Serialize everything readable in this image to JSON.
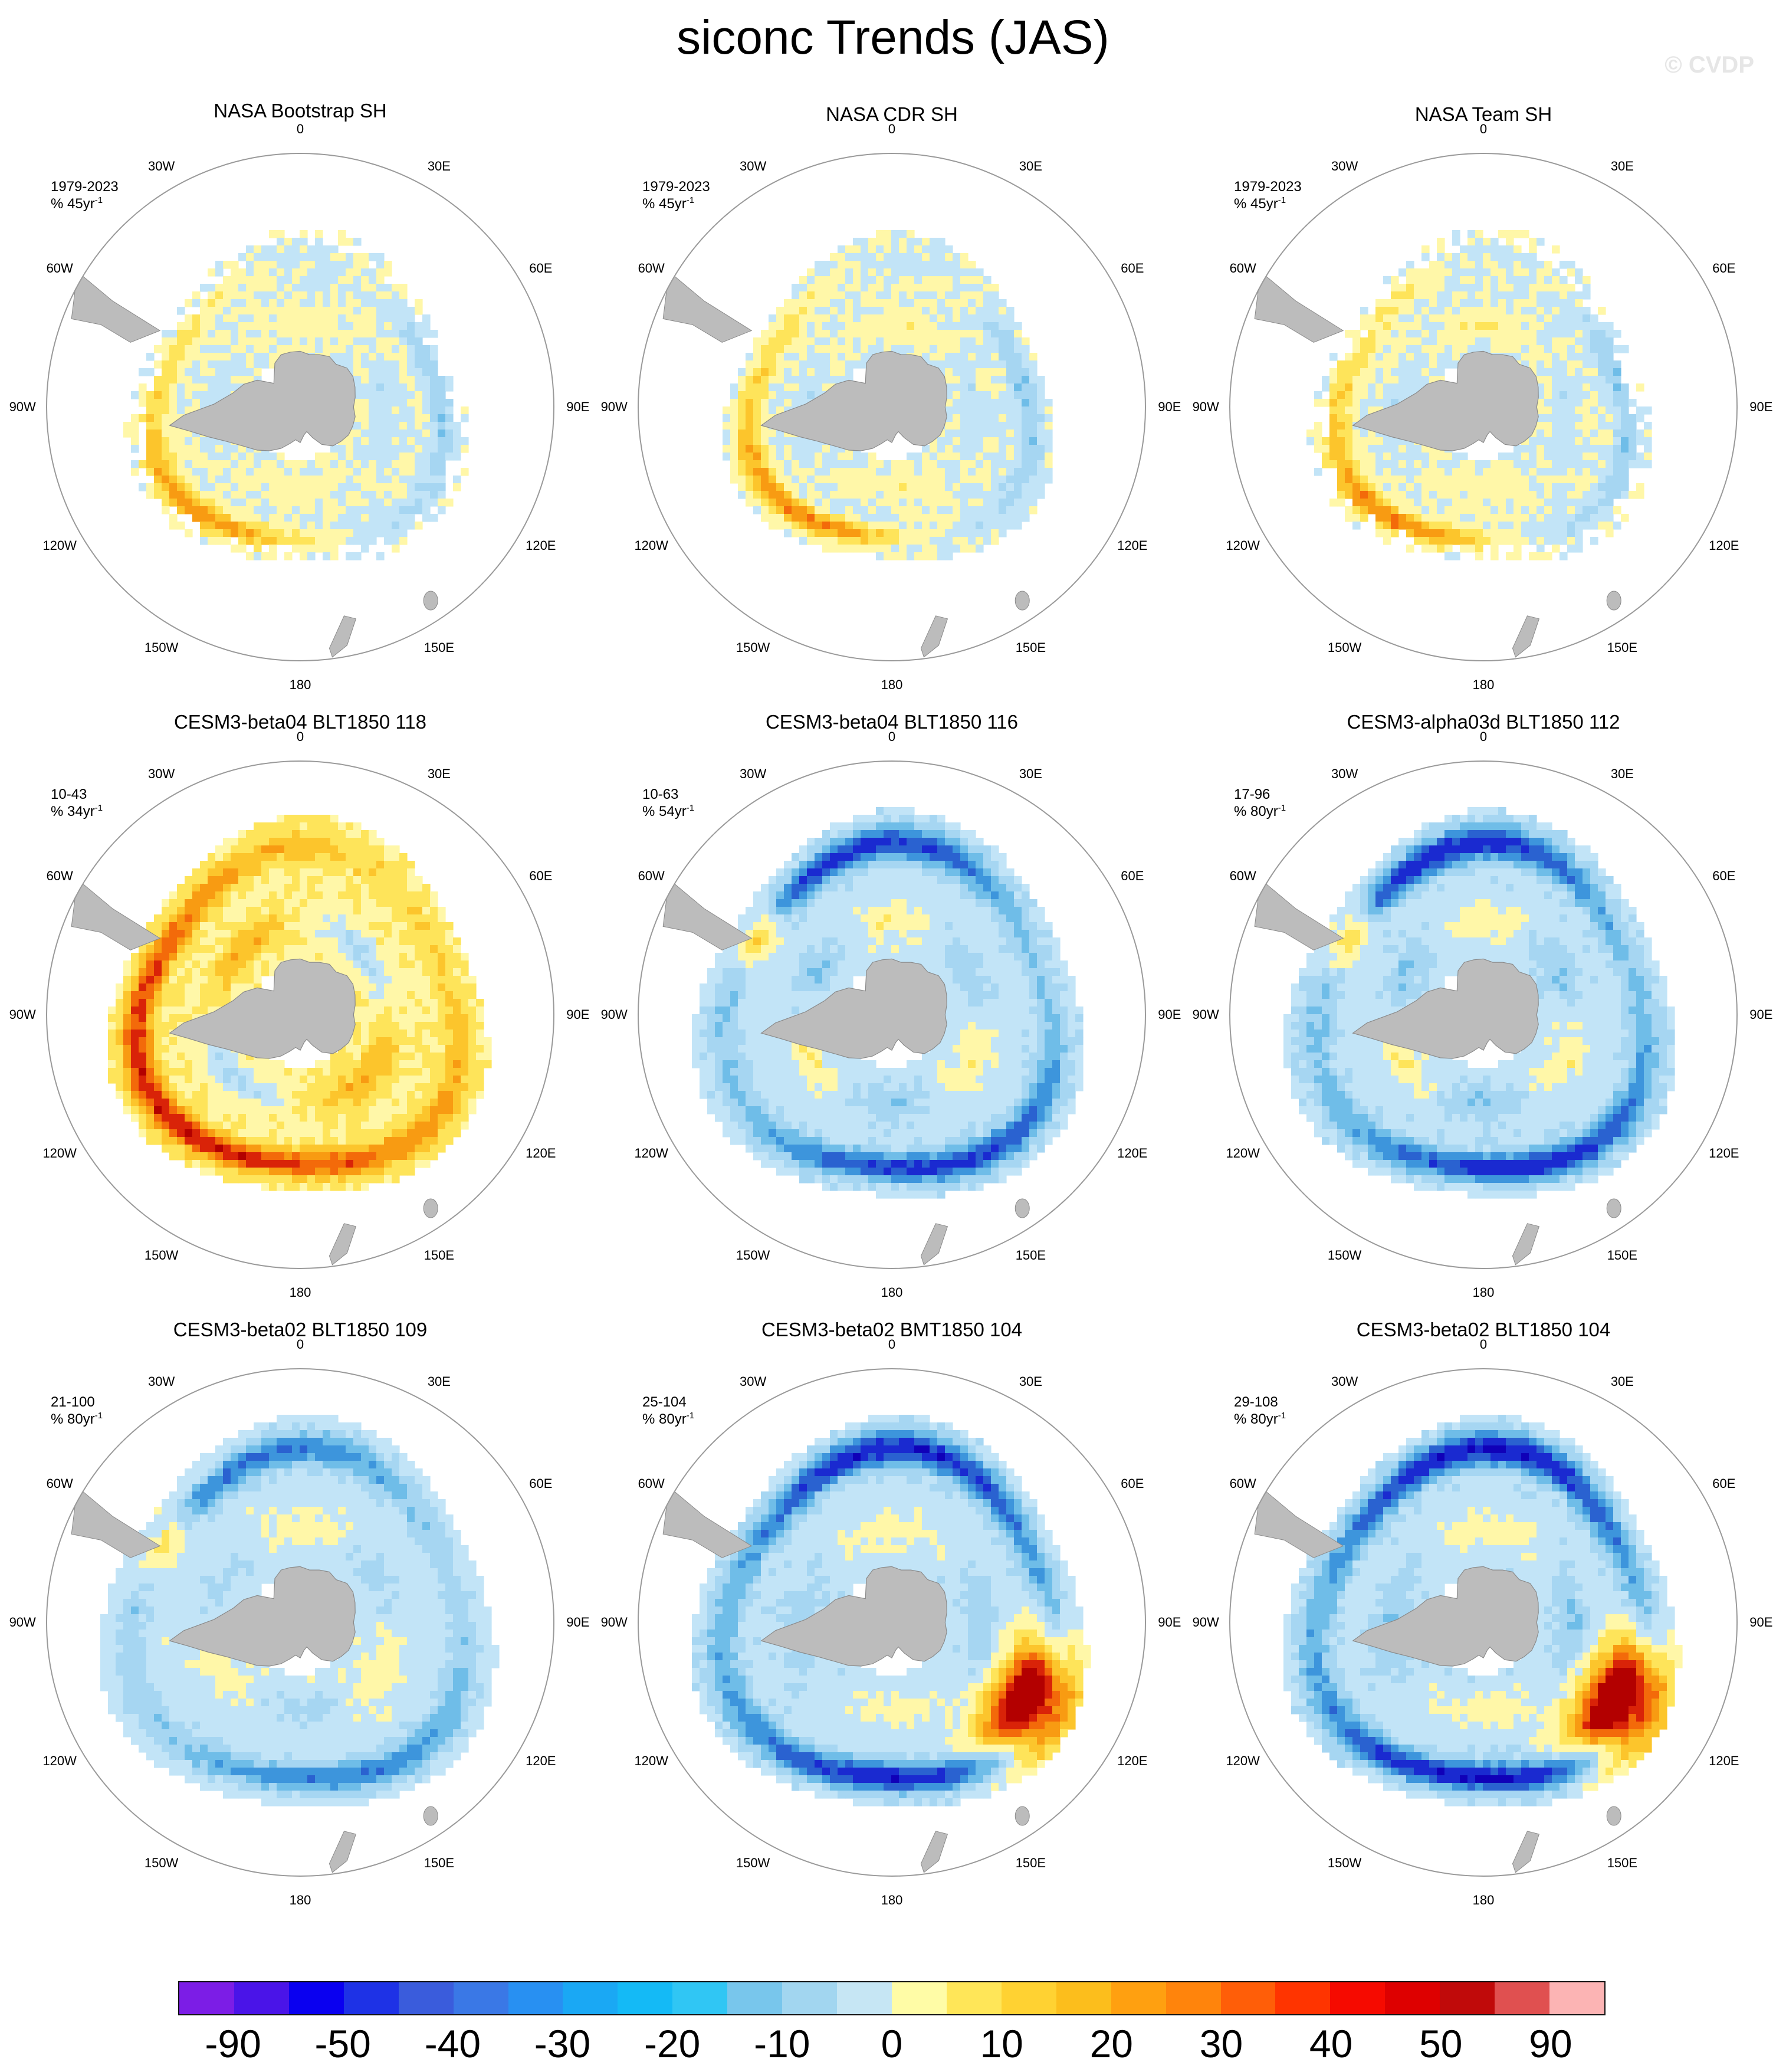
{
  "title": "siconc Trends (JAS)",
  "watermark": "© CVDP",
  "colors": {
    "land": "#bcbcbc",
    "circle": "#9a9a9a",
    "positive_ramp": [
      "#fff7a8",
      "#fee45a",
      "#fcc52c",
      "#f89b12",
      "#f36a0a",
      "#d92308",
      "#b30000"
    ],
    "negative_ramp": [
      "#c2e4f7",
      "#a6d6f2",
      "#6fbde8",
      "#3d95dc",
      "#2a62d0",
      "#1a2ad0",
      "#1000b8"
    ]
  },
  "longitude_labels": [
    "0",
    "30E",
    "60E",
    "90E",
    "120E",
    "150E",
    "180",
    "150W",
    "120W",
    "90W",
    "60W",
    "30W"
  ],
  "panels": [
    {
      "title": "NASA Bootstrap SH",
      "period": "1979-2023",
      "units": "% 45yr",
      "units_exp": "-1",
      "pattern": {
        "ring": "mixed_obs",
        "strength": 0.45,
        "outer_extent": 0.66,
        "speckle": true
      }
    },
    {
      "title": "NASA CDR SH",
      "period": "1979-2023",
      "units": "% 45yr",
      "units_exp": "-1",
      "pattern": {
        "ring": "mixed_obs",
        "strength": 0.5,
        "outer_extent": 0.64,
        "speckle": false
      }
    },
    {
      "title": "NASA Team SH",
      "period": "1979-2023",
      "units": "% 45yr",
      "units_exp": "-1",
      "pattern": {
        "ring": "mixed_obs",
        "strength": 0.5,
        "outer_extent": 0.66,
        "speckle": true
      }
    },
    {
      "title": "CESM3-beta04 BLT1850 118",
      "period": "10-43",
      "units": "% 34yr",
      "units_exp": "-1",
      "pattern": {
        "ring": "positive",
        "strength": 0.8,
        "outer_extent": 0.74,
        "speckle": false
      }
    },
    {
      "title": "CESM3-beta04 BLT1850 116",
      "period": "10-63",
      "units": "% 54yr",
      "units_exp": "-1",
      "pattern": {
        "ring": "negative",
        "strength": 0.75,
        "outer_extent": 0.76,
        "speckle": false
      }
    },
    {
      "title": "CESM3-alpha03d BLT1850 112",
      "period": "17-96",
      "units": "% 80yr",
      "units_exp": "-1",
      "pattern": {
        "ring": "negative",
        "strength": 0.8,
        "outer_extent": 0.76,
        "speckle": false
      }
    },
    {
      "title": "CESM3-beta02 BLT1850 109",
      "period": "21-100",
      "units": "% 80yr",
      "units_exp": "-1",
      "pattern": {
        "ring": "negative",
        "strength": 0.55,
        "outer_extent": 0.77,
        "speckle": false
      }
    },
    {
      "title": "CESM3-beta02 BMT1850 104",
      "period": "25-104",
      "units": "% 80yr",
      "units_exp": "-1",
      "pattern": {
        "ring": "negative_east_positive",
        "strength": 0.8,
        "outer_extent": 0.77,
        "speckle": false
      }
    },
    {
      "title": "CESM3-beta02 BLT1850 104",
      "period": "29-108",
      "units": "% 80yr",
      "units_exp": "-1",
      "pattern": {
        "ring": "negative_east_positive",
        "strength": 0.85,
        "outer_extent": 0.77,
        "speckle": false
      }
    }
  ],
  "colorbar": {
    "colors": [
      "#7c1de6",
      "#4a14e8",
      "#0a00f0",
      "#1e32e6",
      "#3a5cdc",
      "#3a78e6",
      "#2890f2",
      "#1aa8f4",
      "#14baf6",
      "#30c6f4",
      "#78c6ec",
      "#a2d6f0",
      "#c6e6f4",
      "#fffca6",
      "#ffe658",
      "#ffd232",
      "#fcbe1c",
      "#ffa010",
      "#ff840c",
      "#ff5e08",
      "#ff3400",
      "#f60a00",
      "#de0000",
      "#c00a0a",
      "#e05050",
      "#fcb4b4"
    ],
    "labels": [
      "-90",
      "-50",
      "-40",
      "-30",
      "-20",
      "-10",
      "0",
      "10",
      "20",
      "30",
      "40",
      "50",
      "90"
    ]
  }
}
